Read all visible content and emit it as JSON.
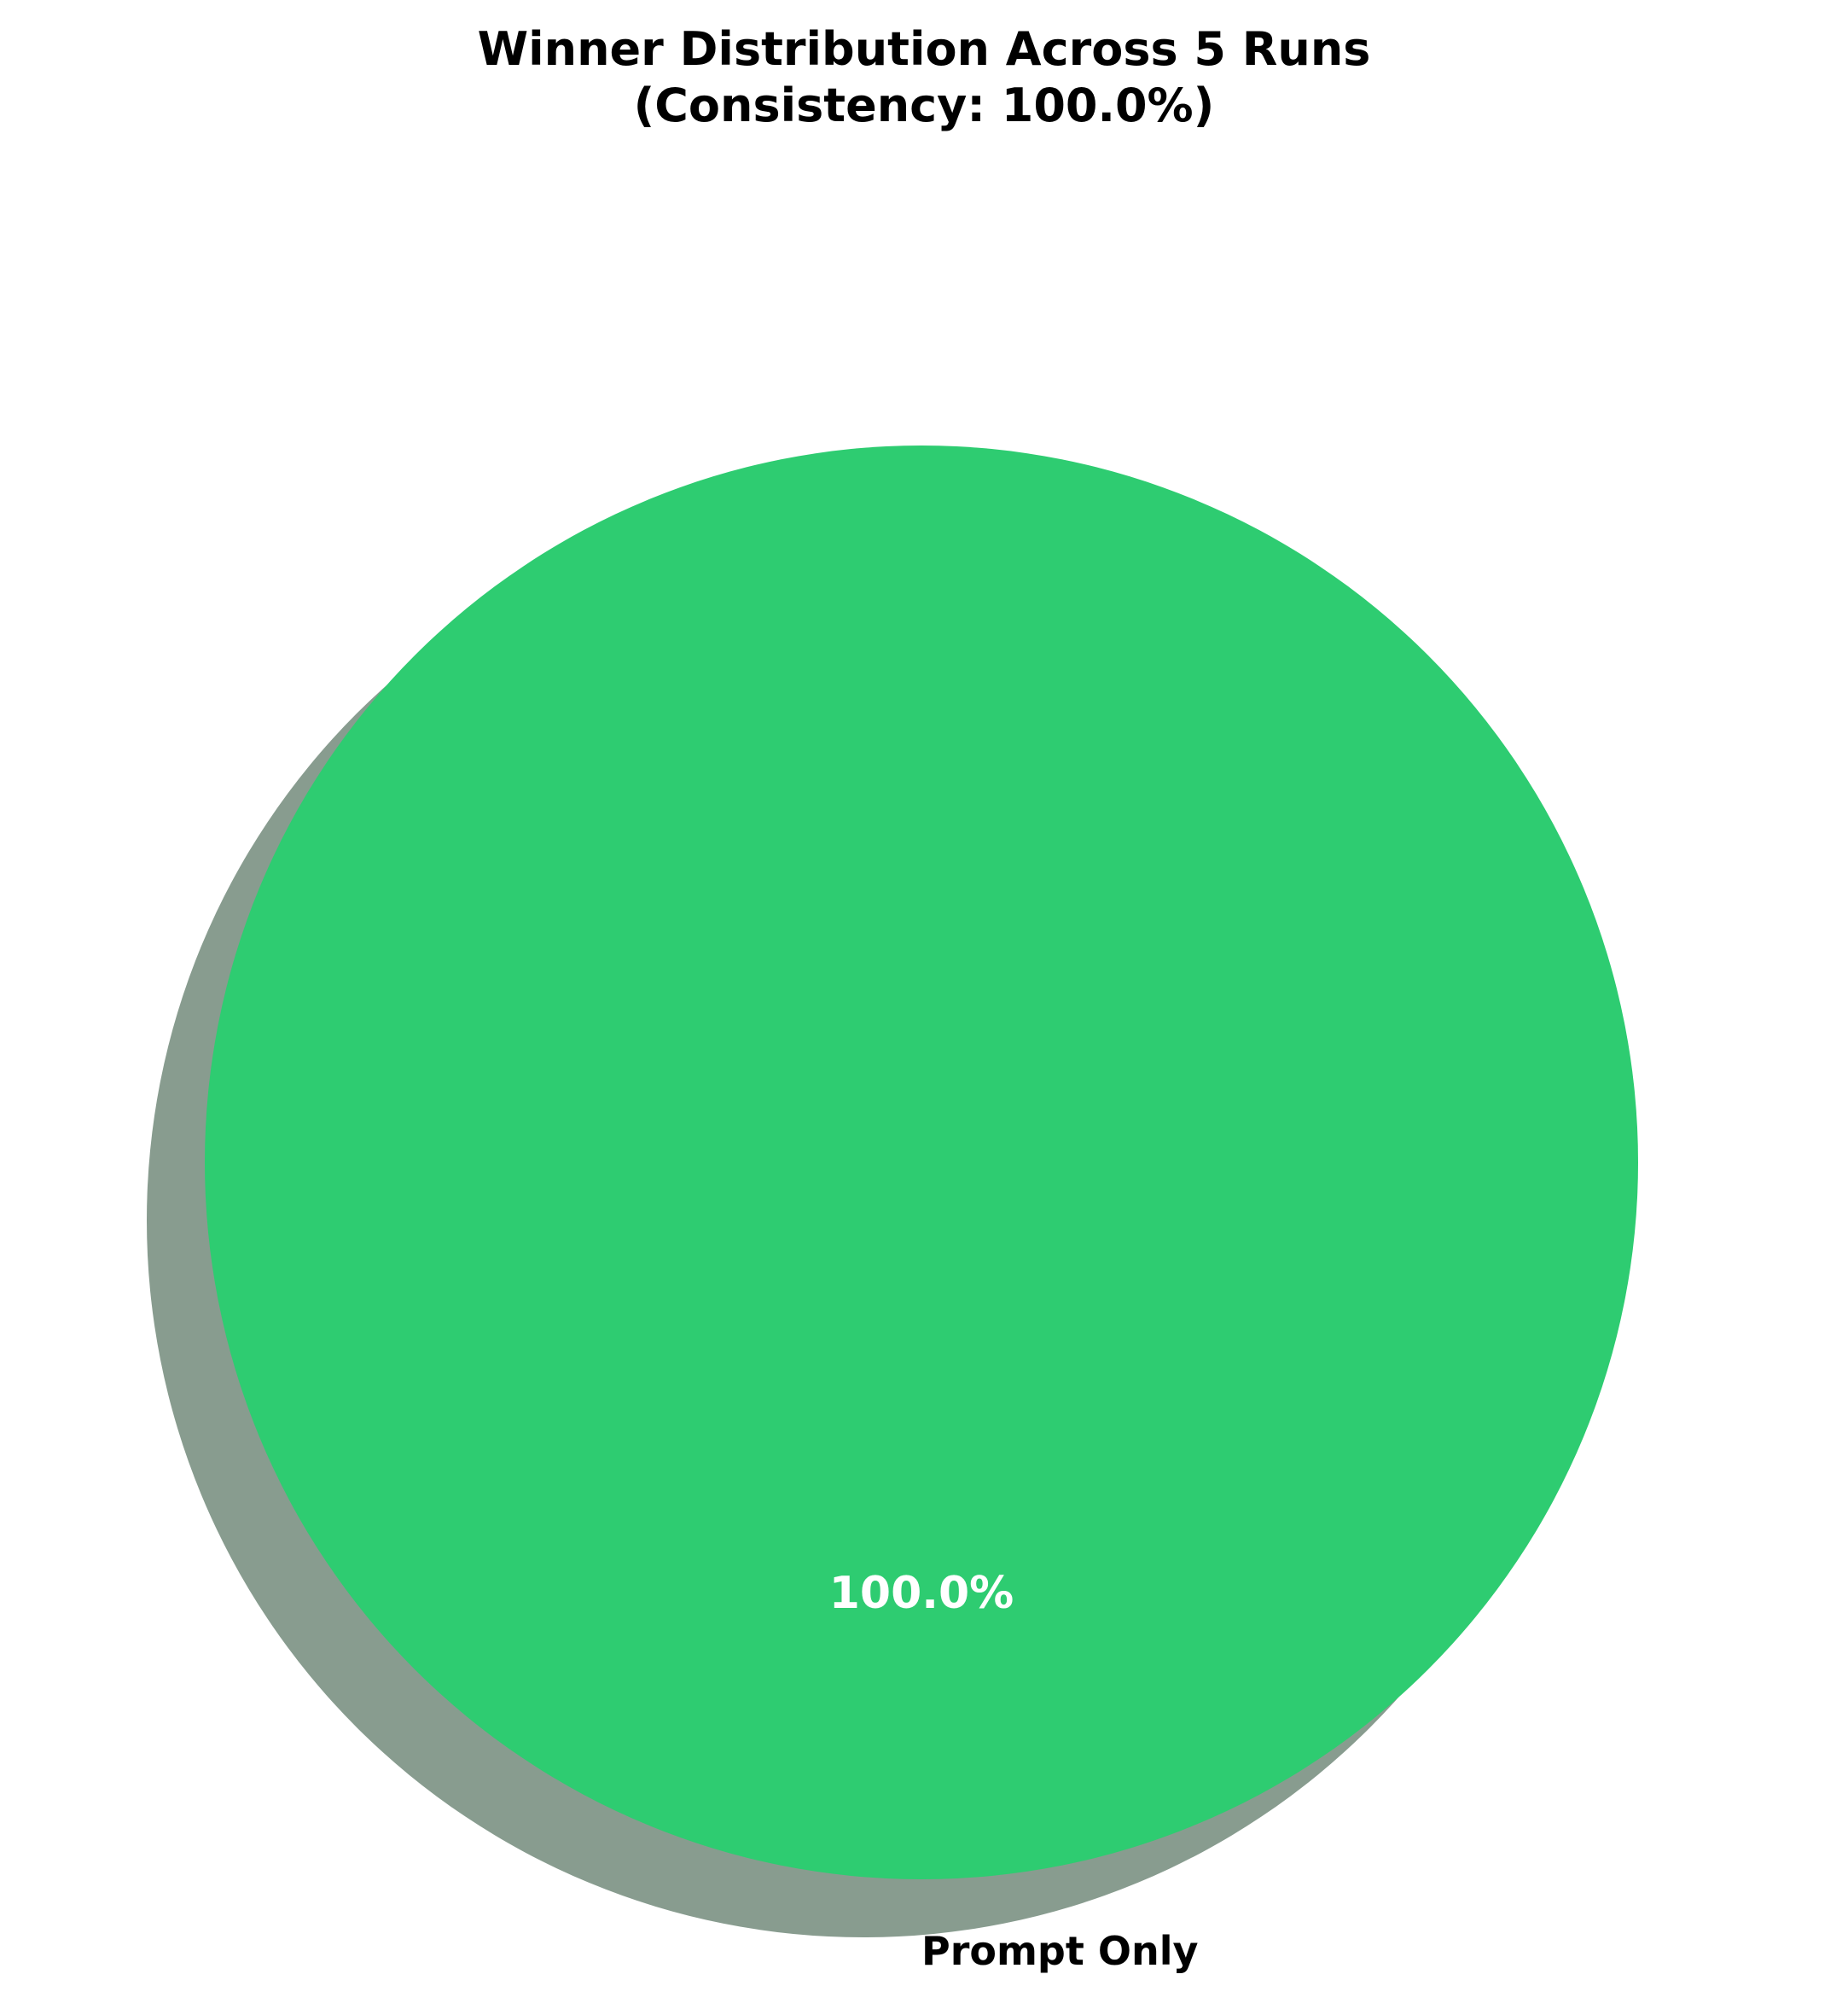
{
  "chart_data": {
    "type": "pie",
    "title": "Winner Distribution Across 5 Runs",
    "subtitle": "(Consistency: 100.0%)",
    "slices": [
      {
        "label": "Prompt Only",
        "value": 100.0,
        "pct_label": "100.0%",
        "color": "#2ecc71"
      }
    ],
    "shadow": true,
    "shadow_color": "#889c8f",
    "pct_label_color": "#ffffff",
    "legend": "none"
  }
}
